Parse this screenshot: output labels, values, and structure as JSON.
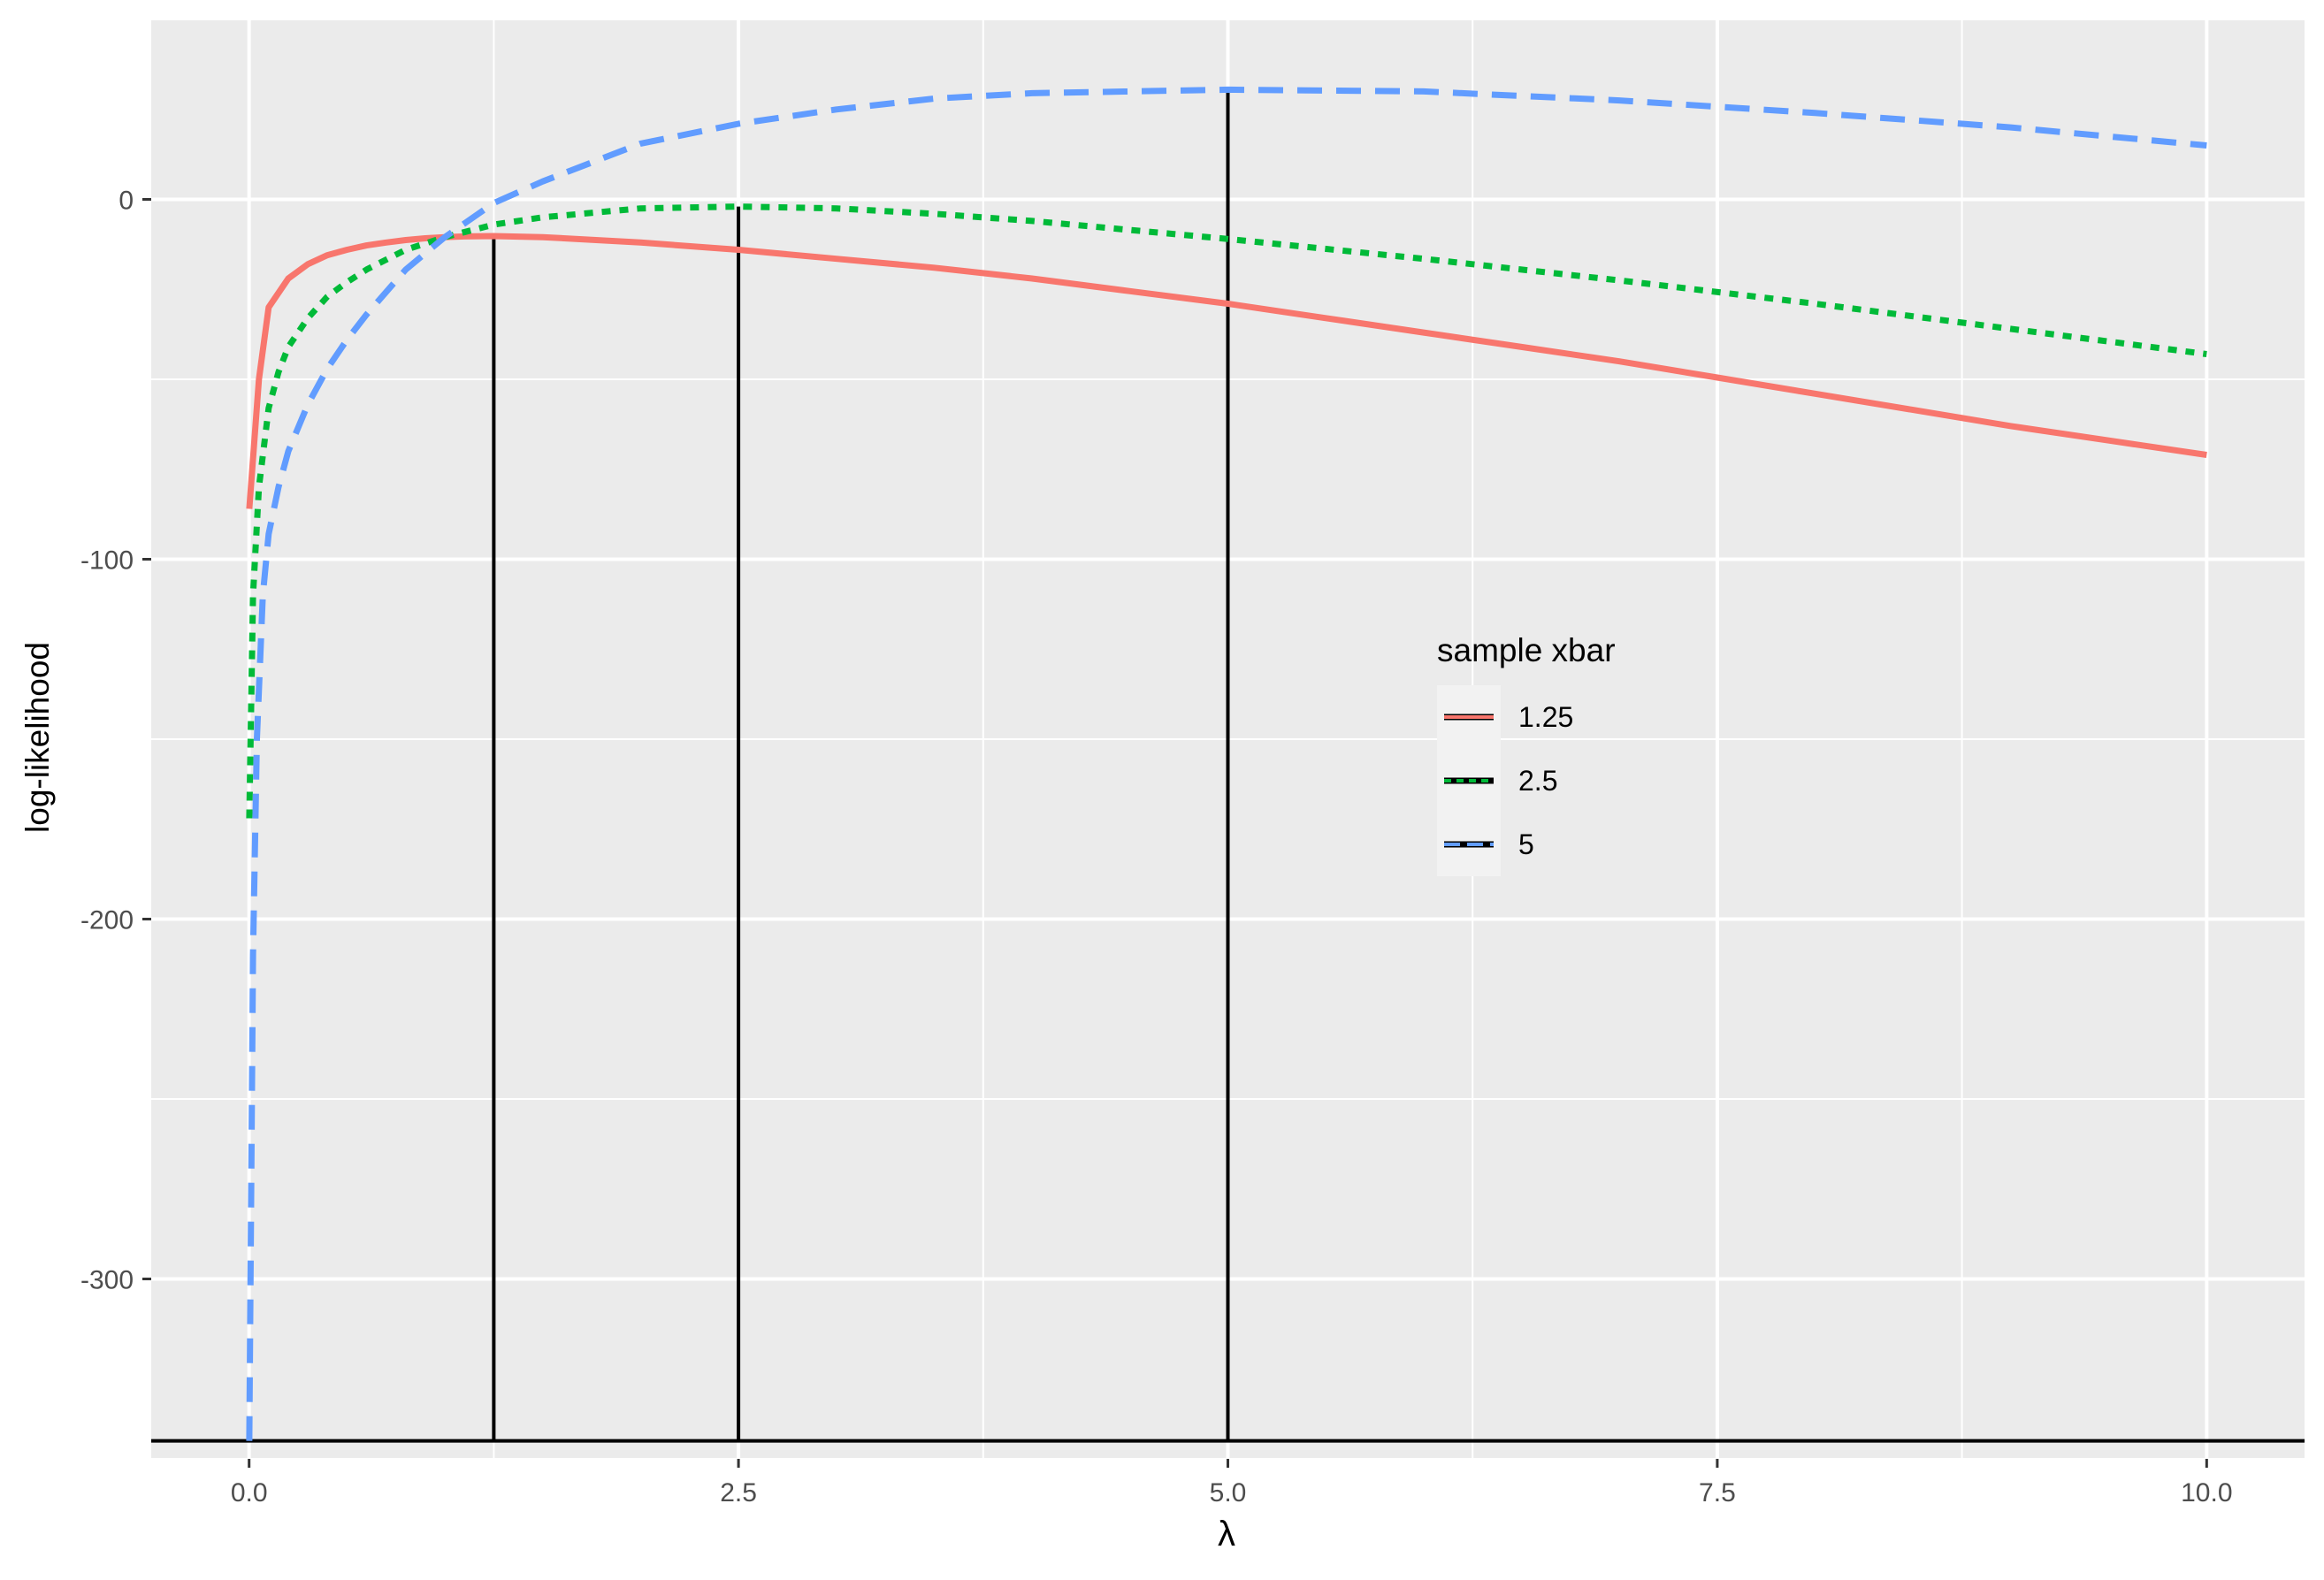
{
  "chart_data": {
    "type": "line",
    "title": "",
    "xlabel": "λ",
    "ylabel": "log-likelihood",
    "xlim": [
      -0.5,
      10.5
    ],
    "ylim": [
      -350,
      50
    ],
    "x_ticks": [
      0,
      2.5,
      5,
      7.5,
      10
    ],
    "x_tick_labels": [
      "0.0",
      "2.5",
      "5.0",
      "7.5",
      "10.0"
    ],
    "y_ticks": [
      -300,
      -200,
      -100,
      0
    ],
    "y_tick_labels": [
      "-300",
      "-200",
      "-100",
      "0"
    ],
    "grid": true,
    "legend": {
      "title": "sample xbar",
      "position": "inside-right"
    },
    "hline": -345,
    "vlines": [
      {
        "x": 1.25,
        "ymin": -345,
        "ymax": -10
      },
      {
        "x": 2.5,
        "ymin": -345,
        "ymax": -2
      },
      {
        "x": 5,
        "ymin": -345,
        "ymax": 30
      }
    ],
    "series": [
      {
        "name": "1.25",
        "color": "#f8766d",
        "dash": "solid",
        "x": [
          0.001,
          0.05,
          0.1,
          0.2,
          0.3,
          0.4,
          0.5,
          0.6,
          0.7,
          0.8,
          0.9,
          1.0,
          1.1,
          1.25,
          1.5,
          2.0,
          2.5,
          3.0,
          3.5,
          4.0,
          4.5,
          5.0,
          5.5,
          6.0,
          6.5,
          7.0,
          7.5,
          8.0,
          8.5,
          9.0,
          9.5,
          10.0
        ],
        "y": [
          -86,
          -50,
          -30,
          -22,
          -18,
          -15.5,
          -14,
          -12.8,
          -12,
          -11.3,
          -10.8,
          -10.5,
          -10.3,
          -10.2,
          -10.5,
          -12,
          -14,
          -16.5,
          -19,
          -22,
          -25.5,
          -29,
          -33,
          -37,
          -41,
          -45,
          -49.5,
          -54,
          -58.5,
          -63,
          -67,
          -71
        ]
      },
      {
        "name": "2.5",
        "color": "#00ba38",
        "dash": "dotted",
        "x": [
          0.001,
          0.02,
          0.05,
          0.1,
          0.15,
          0.2,
          0.3,
          0.4,
          0.5,
          0.6,
          0.8,
          1.0,
          1.25,
          1.5,
          2.0,
          2.5,
          3.0,
          3.5,
          4.0,
          5.0,
          6.0,
          7.0,
          8.0,
          9.0,
          10.0
        ],
        "y": [
          -172,
          -110,
          -80,
          -58,
          -48,
          -41,
          -33,
          -27,
          -23,
          -19.5,
          -14,
          -10.5,
          -7,
          -5,
          -2.5,
          -2,
          -2.5,
          -4,
          -6,
          -11,
          -16.5,
          -22.5,
          -29,
          -36,
          -43
        ]
      },
      {
        "name": "5",
        "color": "#619cff",
        "dash": "dashed",
        "x": [
          0.001,
          0.02,
          0.04,
          0.07,
          0.1,
          0.15,
          0.2,
          0.3,
          0.4,
          0.5,
          0.6,
          0.8,
          1.0,
          1.25,
          1.5,
          2.0,
          2.5,
          3.0,
          3.5,
          4.0,
          5.0,
          6.0,
          7.0,
          8.0,
          9.0,
          10.0
        ],
        "y": [
          -345,
          -210,
          -150,
          -110,
          -93,
          -80,
          -70,
          -57,
          -47,
          -39,
          -32,
          -19.5,
          -10.5,
          -1,
          5,
          15.5,
          21,
          25,
          28,
          29.5,
          30.5,
          30,
          27.5,
          24,
          20,
          15
        ]
      }
    ]
  }
}
